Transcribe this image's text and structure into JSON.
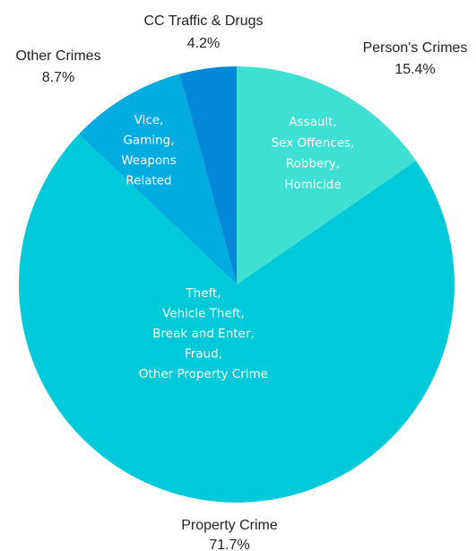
{
  "chart_data": {
    "type": "pie",
    "start_angle_deg": 0,
    "direction": "clockwise",
    "slices": [
      {
        "name": "Person's Crimes",
        "value": 15.4,
        "value_label": "15.4%",
        "color": "#3de0d2",
        "inner_lines": [
          "Assault,",
          "Sex Offences,",
          "Robbery,",
          "Homicide"
        ]
      },
      {
        "name": "Property Crime",
        "value": 71.7,
        "value_label": "71.7%",
        "color": "#00cad9",
        "inner_lines": [
          "Theft,",
          "Vehicle Theft,",
          "Break and Enter,",
          "Fraud,",
          "Other Property Crime"
        ]
      },
      {
        "name": "Other Crimes",
        "value": 8.7,
        "value_label": "8.7%",
        "color": "#02abe0",
        "inner_lines": [
          "Vice,",
          "Gaming,",
          "Weapons",
          "Related"
        ]
      },
      {
        "name": "CC Traffic & Drugs",
        "value": 4.2,
        "value_label": "4.2%",
        "color": "#0288d6",
        "inner_lines": []
      }
    ]
  }
}
